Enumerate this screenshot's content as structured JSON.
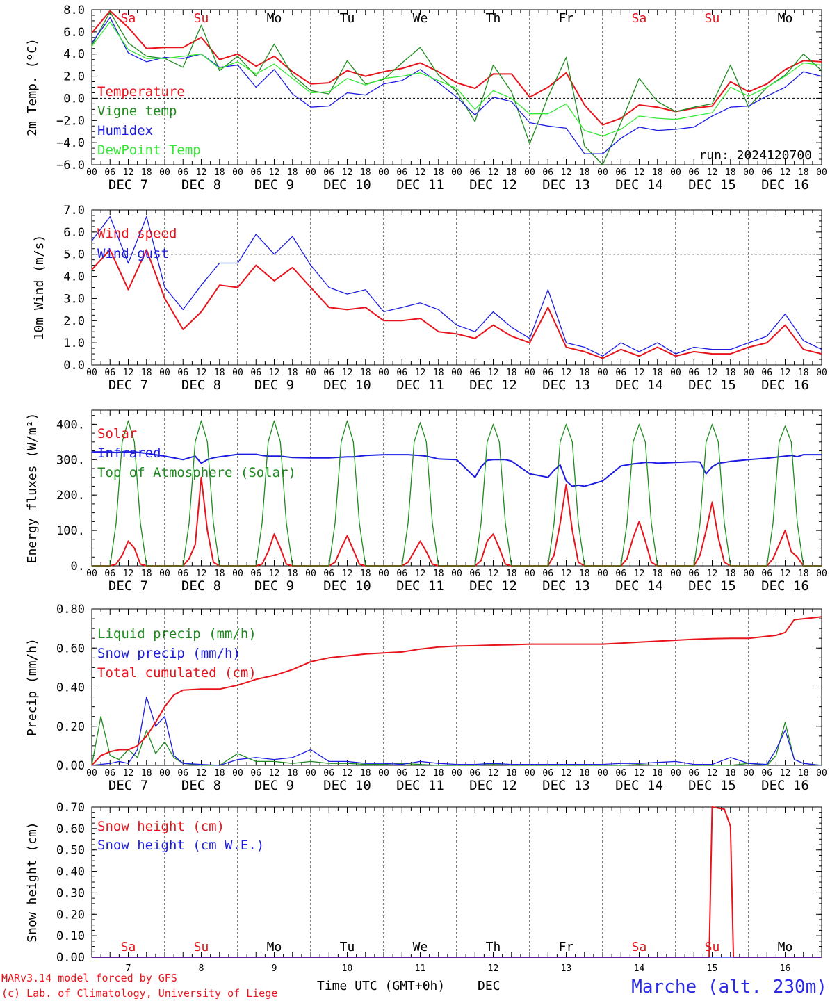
{
  "footer": {
    "model_line": "MARv3.14 model forced by GFS",
    "credit_line": "(c) Lab. of Climatology, University of Liege",
    "axis_title": "Time UTC (GMT+0h)",
    "axis_month": "DEC",
    "station": "Marche (alt. 230m)"
  },
  "days": {
    "names": [
      "Sa",
      "Su",
      "Mo",
      "Tu",
      "We",
      "Th",
      "Fr",
      "Sa",
      "Su",
      "Mo"
    ],
    "weekend_flags": [
      true,
      true,
      false,
      false,
      false,
      false,
      false,
      true,
      true,
      false
    ],
    "dates": [
      "DEC  7",
      "DEC  8",
      "DEC  9",
      "DEC 10",
      "DEC 11",
      "DEC 12",
      "DEC 13",
      "DEC 14",
      "DEC 15",
      "DEC 16"
    ],
    "day_numbers": [
      "7",
      "8",
      "9",
      "10",
      "11",
      "12",
      "13",
      "14",
      "15",
      "16"
    ],
    "hour_labels": [
      "00",
      "06",
      "12",
      "18"
    ],
    "final_hour_label": "00"
  },
  "colors": {
    "red": "#e8141c",
    "green": "#1f8a1f",
    "blue": "#1c1ce0",
    "light_green": "#33e833",
    "weekend": "#e8141c",
    "station": "#2a2ae6"
  },
  "chart_data": [
    {
      "id": "temp",
      "type": "line",
      "ylabel": "2m Temp. (ºC)",
      "ylim": [
        -6,
        8
      ],
      "yticks": [
        -6,
        -4,
        -2,
        0,
        2,
        4,
        6,
        8
      ],
      "ytick_labels": [
        "−6.0",
        "−4.0",
        "−2.0",
        "0.0",
        "2.0",
        "4.0",
        "6.0",
        "8.0"
      ],
      "ref_line": 0,
      "annotation": "run: 2024120700",
      "x_hours": [
        0,
        6,
        12,
        18,
        24,
        30,
        36,
        42,
        48,
        54,
        60,
        66,
        72,
        78,
        84,
        90,
        96,
        102,
        108,
        114,
        120,
        126,
        132,
        138,
        144,
        150,
        156,
        162,
        168,
        174,
        180,
        186,
        192,
        198,
        204,
        210,
        216,
        222,
        228,
        234,
        240
      ],
      "series": [
        {
          "name": "Temperature",
          "color_key": "red",
          "values": [
            5.9,
            7.9,
            6.4,
            4.5,
            4.6,
            4.6,
            5.5,
            3.5,
            4.0,
            2.9,
            3.8,
            2.4,
            1.3,
            1.4,
            2.5,
            2.0,
            2.4,
            2.7,
            3.2,
            2.4,
            1.4,
            0.9,
            2.2,
            2.2,
            0.1,
            1.0,
            2.3,
            -0.6,
            -2.4,
            -1.8,
            -0.6,
            -0.8,
            -1.2,
            -0.9,
            -0.7,
            1.5,
            0.6,
            1.3,
            2.6,
            3.4,
            3.3
          ]
        },
        {
          "name": "Vigne temp",
          "color_key": "green",
          "values": [
            4.8,
            7.8,
            5.0,
            3.8,
            3.6,
            2.8,
            6.6,
            2.5,
            3.8,
            2.0,
            4.9,
            2.1,
            0.7,
            0.4,
            3.4,
            1.3,
            1.7,
            3.2,
            4.6,
            2.1,
            0.6,
            -2.1,
            3.0,
            0.6,
            -4.1,
            0.1,
            3.7,
            -4.3,
            -6.0,
            -2.2,
            1.8,
            -0.3,
            -1.2,
            -0.8,
            -0.5,
            3.0,
            -0.8,
            1.0,
            2.1,
            4.0,
            2.5
          ]
        },
        {
          "name": "Humidex",
          "color_key": "blue",
          "values": [
            5.0,
            7.3,
            4.1,
            3.3,
            3.7,
            3.6,
            4.0,
            2.8,
            3.0,
            1.0,
            2.6,
            0.4,
            -0.8,
            -0.7,
            0.5,
            0.3,
            1.3,
            1.6,
            2.6,
            1.4,
            0.1,
            -1.5,
            0.1,
            -0.3,
            -2.2,
            -2.5,
            -2.7,
            -5.0,
            -5.0,
            -3.6,
            -2.6,
            -2.9,
            -2.8,
            -2.6,
            -1.6,
            -0.8,
            -0.7,
            0.2,
            1.0,
            2.4,
            2.0
          ]
        },
        {
          "name": "DewPoint Temp",
          "color_key": "light_green",
          "values": [
            4.7,
            6.9,
            4.4,
            3.6,
            3.6,
            3.8,
            4.0,
            2.7,
            3.3,
            2.2,
            3.1,
            1.8,
            0.5,
            0.6,
            1.8,
            1.2,
            1.8,
            2.0,
            2.3,
            1.6,
            0.9,
            -1.0,
            0.7,
            0.0,
            -1.4,
            -1.4,
            -0.5,
            -2.9,
            -3.4,
            -2.8,
            -1.6,
            -1.8,
            -1.9,
            -1.6,
            -1.3,
            1.0,
            0.2,
            1.0,
            2.0,
            3.2,
            3.0
          ]
        }
      ]
    },
    {
      "id": "wind",
      "type": "line",
      "ylabel": "10m Wind (m/s)",
      "ylim": [
        0,
        7
      ],
      "yticks": [
        0,
        1,
        2,
        3,
        4,
        5,
        6,
        7
      ],
      "ytick_labels": [
        "0.0",
        "1.0",
        "2.0",
        "3.0",
        "4.0",
        "5.0",
        "6.0",
        "7.0"
      ],
      "ref_line": 5,
      "x_hours": [
        0,
        6,
        12,
        18,
        24,
        30,
        36,
        42,
        48,
        54,
        60,
        66,
        72,
        78,
        84,
        90,
        96,
        102,
        108,
        114,
        120,
        126,
        132,
        138,
        144,
        150,
        156,
        162,
        168,
        174,
        180,
        186,
        192,
        198,
        204,
        210,
        216,
        222,
        228,
        234,
        240
      ],
      "series": [
        {
          "name": "Wind speed",
          "color_key": "red",
          "values": [
            4.3,
            5.2,
            3.4,
            5.2,
            3.0,
            1.6,
            2.4,
            3.6,
            3.5,
            4.5,
            3.8,
            4.4,
            3.5,
            2.6,
            2.5,
            2.6,
            2.0,
            2.0,
            2.1,
            1.5,
            1.4,
            1.2,
            1.8,
            1.3,
            1.0,
            2.6,
            0.8,
            0.6,
            0.3,
            0.7,
            0.4,
            0.8,
            0.4,
            0.6,
            0.5,
            0.5,
            0.8,
            1.0,
            1.8,
            0.7,
            0.5
          ]
        },
        {
          "name": "Wind gust",
          "color_key": "blue",
          "values": [
            5.6,
            6.7,
            4.6,
            6.7,
            3.5,
            2.5,
            3.6,
            4.6,
            4.6,
            5.9,
            5.0,
            5.8,
            4.5,
            3.5,
            3.2,
            3.4,
            2.4,
            2.6,
            2.8,
            2.5,
            1.8,
            1.5,
            2.4,
            1.7,
            1.2,
            3.4,
            1.0,
            0.8,
            0.4,
            1.0,
            0.6,
            1.0,
            0.5,
            0.8,
            0.7,
            0.7,
            1.0,
            1.3,
            2.3,
            1.1,
            0.7
          ]
        }
      ]
    },
    {
      "id": "energy",
      "type": "line",
      "ylabel": "Energy fluxes (W/m²)",
      "ylim": [
        0,
        440
      ],
      "yticks": [
        0,
        100,
        200,
        300,
        400
      ],
      "ytick_labels": [
        "0.",
        "100.",
        "200.",
        "300.",
        "400."
      ],
      "x_hours": [
        0,
        6,
        8,
        10,
        12,
        14,
        16,
        18,
        24,
        30,
        32,
        34,
        36,
        38,
        40,
        42,
        48,
        54,
        56,
        58,
        60,
        62,
        64,
        66,
        72,
        78,
        80,
        82,
        84,
        86,
        88,
        90,
        96,
        102,
        104,
        106,
        108,
        110,
        112,
        114,
        120,
        126,
        128,
        130,
        132,
        134,
        136,
        138,
        144,
        150,
        152,
        154,
        156,
        158,
        160,
        162,
        168,
        174,
        176,
        178,
        180,
        182,
        184,
        186,
        192,
        198,
        200,
        202,
        204,
        206,
        208,
        210,
        216,
        222,
        224,
        226,
        228,
        230,
        232,
        234,
        240
      ],
      "series": [
        {
          "name": "Solar",
          "color_key": "red",
          "values": [
            0,
            0,
            5,
            30,
            70,
            50,
            5,
            0,
            0,
            0,
            20,
            60,
            250,
            100,
            10,
            0,
            0,
            0,
            5,
            40,
            90,
            50,
            5,
            0,
            0,
            0,
            10,
            50,
            85,
            45,
            5,
            0,
            0,
            0,
            10,
            40,
            70,
            40,
            5,
            0,
            0,
            0,
            15,
            70,
            90,
            50,
            5,
            0,
            0,
            0,
            30,
            120,
            230,
            100,
            10,
            0,
            0,
            0,
            20,
            80,
            125,
            70,
            10,
            0,
            0,
            0,
            30,
            100,
            180,
            80,
            10,
            0,
            0,
            0,
            20,
            60,
            100,
            40,
            25,
            0,
            0
          ]
        },
        {
          "name": "Infrared",
          "color_key": "blue",
          "values": [
            322,
            322,
            320,
            322,
            322,
            322,
            320,
            318,
            310,
            300,
            305,
            310,
            290,
            300,
            305,
            308,
            315,
            315,
            312,
            310,
            310,
            310,
            308,
            306,
            305,
            305,
            306,
            307,
            308,
            308,
            310,
            312,
            314,
            314,
            314,
            313,
            312,
            310,
            306,
            302,
            300,
            250,
            280,
            298,
            300,
            300,
            300,
            296,
            260,
            250,
            270,
            285,
            240,
            225,
            228,
            225,
            240,
            282,
            285,
            288,
            290,
            292,
            292,
            290,
            292,
            294,
            293,
            260,
            280,
            290,
            292,
            295,
            300,
            304,
            306,
            308,
            310,
            312,
            308,
            314,
            314
          ]
        },
        {
          "name": "Top of Atmosphere (Solar)",
          "color_key": "green",
          "values": [
            0,
            0,
            120,
            350,
            410,
            350,
            120,
            0,
            0,
            0,
            120,
            350,
            410,
            350,
            120,
            0,
            0,
            0,
            120,
            350,
            410,
            350,
            120,
            0,
            0,
            0,
            120,
            350,
            410,
            350,
            120,
            0,
            0,
            0,
            120,
            350,
            405,
            350,
            120,
            0,
            0,
            0,
            120,
            350,
            400,
            350,
            120,
            0,
            0,
            0,
            120,
            350,
            400,
            350,
            120,
            0,
            0,
            0,
            120,
            350,
            400,
            350,
            120,
            0,
            0,
            0,
            120,
            350,
            400,
            350,
            120,
            0,
            0,
            0,
            120,
            350,
            395,
            350,
            120,
            0,
            0
          ]
        }
      ]
    },
    {
      "id": "precip",
      "type": "line",
      "ylabel": "Precip (mm/h)",
      "ylim": [
        0,
        0.8
      ],
      "yticks": [
        0,
        0.2,
        0.4,
        0.6,
        0.8
      ],
      "ytick_labels": [
        "0.00",
        "0.20",
        "0.40",
        "0.60",
        "0.80"
      ],
      "x_hours": [
        0,
        3,
        6,
        9,
        12,
        15,
        18,
        21,
        24,
        27,
        30,
        36,
        42,
        48,
        54,
        60,
        66,
        72,
        78,
        84,
        90,
        96,
        102,
        108,
        114,
        120,
        126,
        132,
        138,
        144,
        150,
        156,
        162,
        168,
        174,
        180,
        186,
        192,
        198,
        204,
        210,
        216,
        222,
        225,
        228,
        231,
        234,
        237,
        240
      ],
      "series": [
        {
          "name": "Liquid precip (mm/h)",
          "color_key": "green",
          "values": [
            0,
            0.25,
            0.05,
            0.03,
            0.08,
            0.04,
            0.18,
            0.06,
            0.12,
            0.04,
            0.01,
            0,
            0,
            0.06,
            0.02,
            0.02,
            0.01,
            0.02,
            0.01,
            0.01,
            0.005,
            0.005,
            0.01,
            0.005,
            0,
            0,
            0,
            0.005,
            0,
            0,
            0,
            0,
            0,
            0,
            0,
            0.005,
            0,
            0,
            0,
            0,
            0,
            0.01,
            0,
            0.05,
            0.22,
            0.03,
            0.01,
            0.005,
            0
          ]
        },
        {
          "name": "Snow precip (mm/h)",
          "color_key": "blue",
          "values": [
            0,
            0.005,
            0.01,
            0.02,
            0.01,
            0.08,
            0.35,
            0.2,
            0.25,
            0.05,
            0.01,
            0.005,
            0,
            0.03,
            0.04,
            0.03,
            0.04,
            0.08,
            0.02,
            0.02,
            0.01,
            0.01,
            0.005,
            0.02,
            0.01,
            0.005,
            0.005,
            0.01,
            0.005,
            0.005,
            0.005,
            0.005,
            0.005,
            0.005,
            0.01,
            0.01,
            0.015,
            0.02,
            0.005,
            0.005,
            0.04,
            0.01,
            0.005,
            0.08,
            0.18,
            0.03,
            0.01,
            0.005,
            0
          ]
        },
        {
          "name": "Total cumulated (cm)",
          "color_key": "red",
          "values": [
            0,
            0.05,
            0.07,
            0.08,
            0.08,
            0.1,
            0.15,
            0.22,
            0.3,
            0.36,
            0.385,
            0.39,
            0.39,
            0.41,
            0.44,
            0.46,
            0.49,
            0.53,
            0.55,
            0.56,
            0.57,
            0.575,
            0.58,
            0.595,
            0.605,
            0.61,
            0.612,
            0.615,
            0.617,
            0.62,
            0.62,
            0.62,
            0.62,
            0.62,
            0.625,
            0.63,
            0.635,
            0.64,
            0.645,
            0.648,
            0.65,
            0.65,
            0.66,
            0.665,
            0.68,
            0.745,
            0.75,
            0.755,
            0.76
          ]
        }
      ]
    },
    {
      "id": "snow",
      "type": "line",
      "ylabel": "Snow height (cm)",
      "ylim": [
        0,
        0.7
      ],
      "yticks": [
        0,
        0.1,
        0.2,
        0.3,
        0.4,
        0.5,
        0.6,
        0.7
      ],
      "ytick_labels": [
        "0.00",
        "0.10",
        "0.20",
        "0.30",
        "0.40",
        "0.50",
        "0.60",
        "0.70"
      ],
      "x_hours": [
        0,
        200,
        203,
        204,
        208,
        210,
        211,
        240
      ],
      "series": [
        {
          "name": "Snow height (cm)",
          "color_key": "red",
          "values": [
            0,
            0,
            0,
            0.7,
            0.69,
            0.61,
            0,
            0
          ]
        },
        {
          "name": "Snow height (cm W.E.)",
          "color_key": "blue",
          "values": [
            0,
            0,
            0,
            0,
            0,
            0,
            0,
            0
          ]
        }
      ]
    }
  ]
}
